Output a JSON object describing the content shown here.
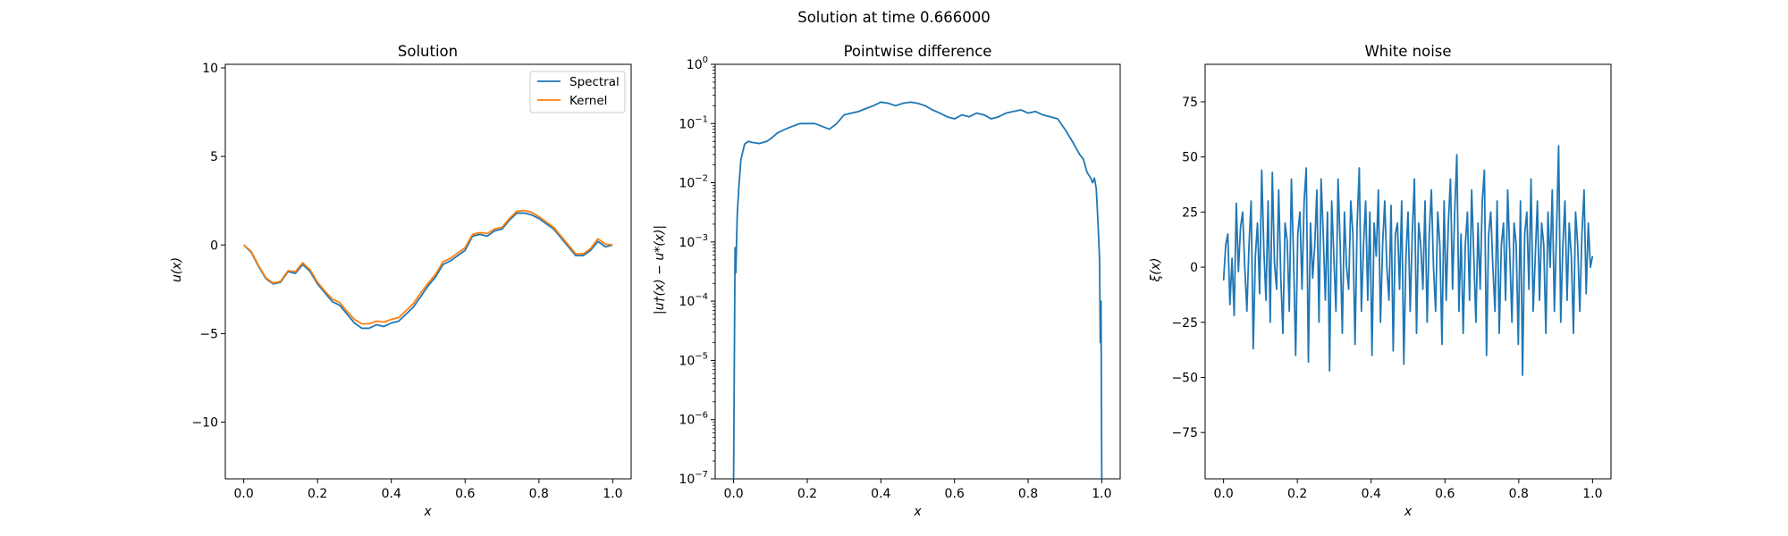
{
  "suptitle": "Solution at time 0.666000",
  "chart_data": [
    {
      "type": "line",
      "title": "Solution",
      "xlabel": "x",
      "ylabel": "u(x)",
      "xlim": [
        -0.05,
        1.05
      ],
      "ylim": [
        -13.2,
        10.2
      ],
      "xticks": [
        0.0,
        0.2,
        0.4,
        0.6,
        0.8,
        1.0
      ],
      "xtick_labels": [
        "0.0",
        "0.2",
        "0.4",
        "0.6",
        "0.8",
        "1.0"
      ],
      "yticks": [
        -10,
        -5,
        0,
        5,
        10
      ],
      "ytick_labels": [
        "−10",
        "−5",
        "0",
        "5",
        "10"
      ],
      "grid": false,
      "legend": "top-right",
      "series": [
        {
          "name": "Spectral",
          "color": "#1f77b4",
          "x": [
            0.0,
            0.02,
            0.04,
            0.06,
            0.08,
            0.1,
            0.12,
            0.14,
            0.16,
            0.18,
            0.2,
            0.22,
            0.24,
            0.26,
            0.28,
            0.3,
            0.32,
            0.34,
            0.36,
            0.38,
            0.4,
            0.42,
            0.44,
            0.46,
            0.48,
            0.5,
            0.52,
            0.54,
            0.56,
            0.58,
            0.6,
            0.62,
            0.64,
            0.66,
            0.68,
            0.7,
            0.72,
            0.74,
            0.76,
            0.78,
            0.8,
            0.82,
            0.84,
            0.86,
            0.88,
            0.9,
            0.92,
            0.94,
            0.96,
            0.98,
            1.0
          ],
          "values": [
            0.0,
            -0.4,
            -1.2,
            -1.9,
            -2.2,
            -2.1,
            -1.5,
            -1.6,
            -1.1,
            -1.5,
            -2.2,
            -2.7,
            -3.2,
            -3.4,
            -3.9,
            -4.4,
            -4.7,
            -4.7,
            -4.5,
            -4.6,
            -4.4,
            -4.3,
            -3.9,
            -3.5,
            -2.9,
            -2.3,
            -1.8,
            -1.1,
            -0.9,
            -0.6,
            -0.3,
            0.5,
            0.6,
            0.5,
            0.8,
            0.9,
            1.4,
            1.8,
            1.8,
            1.7,
            1.5,
            1.2,
            0.9,
            0.4,
            -0.1,
            -0.6,
            -0.6,
            -0.3,
            0.2,
            -0.1,
            0.0
          ]
        },
        {
          "name": "Kernel",
          "color": "#ff7f0e",
          "x": [
            0.0,
            0.02,
            0.04,
            0.06,
            0.08,
            0.1,
            0.12,
            0.14,
            0.16,
            0.18,
            0.2,
            0.22,
            0.24,
            0.26,
            0.28,
            0.3,
            0.32,
            0.34,
            0.36,
            0.38,
            0.4,
            0.42,
            0.44,
            0.46,
            0.48,
            0.5,
            0.52,
            0.54,
            0.56,
            0.58,
            0.6,
            0.62,
            0.64,
            0.66,
            0.68,
            0.7,
            0.72,
            0.74,
            0.76,
            0.78,
            0.8,
            0.82,
            0.84,
            0.86,
            0.88,
            0.9,
            0.92,
            0.94,
            0.96,
            0.98,
            1.0
          ],
          "values": [
            0.0,
            -0.35,
            -1.15,
            -1.85,
            -2.15,
            -2.05,
            -1.45,
            -1.5,
            -1.0,
            -1.4,
            -2.1,
            -2.6,
            -3.05,
            -3.25,
            -3.75,
            -4.2,
            -4.45,
            -4.45,
            -4.3,
            -4.35,
            -4.2,
            -4.1,
            -3.7,
            -3.3,
            -2.7,
            -2.15,
            -1.65,
            -0.95,
            -0.75,
            -0.45,
            -0.15,
            0.6,
            0.7,
            0.65,
            0.9,
            1.0,
            1.5,
            1.9,
            1.95,
            1.85,
            1.6,
            1.3,
            1.0,
            0.5,
            0.0,
            -0.5,
            -0.5,
            -0.2,
            0.35,
            0.05,
            0.0
          ]
        }
      ]
    },
    {
      "type": "line",
      "title": "Pointwise difference",
      "xlabel": "x",
      "ylabel": "|u†(x) − u*(x)|",
      "xlim": [
        -0.05,
        1.05
      ],
      "ylim": [
        1e-07,
        1
      ],
      "yscale": "log",
      "xticks": [
        0.0,
        0.2,
        0.4,
        0.6,
        0.8,
        1.0
      ],
      "xtick_labels": [
        "0.0",
        "0.2",
        "0.4",
        "0.6",
        "0.8",
        "1.0"
      ],
      "yticks": [
        1e-07,
        1e-06,
        1e-05,
        0.0001,
        0.001,
        0.01,
        0.1,
        1
      ],
      "ytick_labels": [
        [
          "10",
          "−7"
        ],
        [
          "10",
          "−6"
        ],
        [
          "10",
          "−5"
        ],
        [
          "10",
          "−4"
        ],
        [
          "10",
          "−3"
        ],
        [
          "10",
          "−2"
        ],
        [
          "10",
          "−1"
        ],
        [
          "10",
          "0"
        ]
      ],
      "grid": false,
      "series": [
        {
          "color": "#1f77b4",
          "x": [
            0.0,
            0.002,
            0.004,
            0.006,
            0.008,
            0.01,
            0.015,
            0.02,
            0.03,
            0.04,
            0.05,
            0.07,
            0.09,
            0.1,
            0.12,
            0.14,
            0.16,
            0.18,
            0.2,
            0.22,
            0.24,
            0.26,
            0.28,
            0.3,
            0.32,
            0.34,
            0.36,
            0.38,
            0.4,
            0.42,
            0.44,
            0.46,
            0.48,
            0.5,
            0.52,
            0.54,
            0.56,
            0.58,
            0.6,
            0.62,
            0.64,
            0.66,
            0.68,
            0.7,
            0.72,
            0.74,
            0.76,
            0.78,
            0.8,
            0.82,
            0.84,
            0.86,
            0.88,
            0.9,
            0.92,
            0.94,
            0.95,
            0.96,
            0.97,
            0.975,
            0.98,
            0.985,
            0.99,
            0.992,
            0.994,
            0.996,
            0.998,
            1.0
          ],
          "values": [
            1e-07,
            1e-05,
            0.0008,
            0.0003,
            0.001,
            0.003,
            0.01,
            0.025,
            0.045,
            0.05,
            0.048,
            0.046,
            0.05,
            0.055,
            0.07,
            0.08,
            0.09,
            0.1,
            0.1,
            0.1,
            0.09,
            0.08,
            0.1,
            0.14,
            0.15,
            0.16,
            0.18,
            0.2,
            0.23,
            0.22,
            0.2,
            0.22,
            0.23,
            0.22,
            0.2,
            0.17,
            0.15,
            0.13,
            0.12,
            0.14,
            0.13,
            0.15,
            0.14,
            0.12,
            0.13,
            0.15,
            0.16,
            0.17,
            0.15,
            0.16,
            0.14,
            0.13,
            0.12,
            0.08,
            0.05,
            0.03,
            0.025,
            0.015,
            0.012,
            0.01,
            0.012,
            0.008,
            0.002,
            0.001,
            0.0005,
            2e-05,
            0.0001,
            1e-07
          ]
        }
      ]
    },
    {
      "type": "line",
      "title": "White noise",
      "xlabel": "x",
      "ylabel": "ξ(x)",
      "xlim": [
        -0.05,
        1.05
      ],
      "ylim": [
        -96,
        92
      ],
      "xticks": [
        0.0,
        0.2,
        0.4,
        0.6,
        0.8,
        1.0
      ],
      "xtick_labels": [
        "0.0",
        "0.2",
        "0.4",
        "0.6",
        "0.8",
        "1.0"
      ],
      "yticks": [
        -75,
        -50,
        -25,
        0,
        25,
        50,
        75
      ],
      "ytick_labels": [
        "−75",
        "−50",
        "−25",
        "0",
        "25",
        "50",
        "75"
      ],
      "grid": false,
      "series": [
        {
          "color": "#1f77b4",
          "x_start": 0.0,
          "x_end": 1.0,
          "values": [
            -6,
            10,
            15,
            -17,
            4,
            -22,
            29,
            -2,
            18,
            25,
            0,
            -20,
            10,
            30,
            -37,
            5,
            20,
            -12,
            44,
            8,
            -15,
            30,
            -25,
            43,
            2,
            -10,
            35,
            -5,
            -30,
            20,
            12,
            -20,
            40,
            5,
            -40,
            15,
            25,
            -10,
            30,
            45,
            -43,
            20,
            -5,
            10,
            35,
            -25,
            40,
            15,
            -15,
            25,
            -47,
            30,
            5,
            -20,
            40,
            10,
            -30,
            25,
            0,
            -10,
            30,
            15,
            -35,
            20,
            45,
            -20,
            10,
            30,
            -15,
            25,
            -40,
            20,
            5,
            35,
            -25,
            10,
            30,
            0,
            -15,
            28,
            -38,
            15,
            20,
            -10,
            30,
            -44,
            5,
            25,
            -20,
            15,
            40,
            -30,
            20,
            10,
            -10,
            30,
            -25,
            15,
            35,
            0,
            -20,
            25,
            10,
            -35,
            30,
            -15,
            20,
            40,
            -10,
            25,
            51,
            -20,
            15,
            -30,
            10,
            25,
            -15,
            35,
            5,
            -25,
            20,
            -10,
            30,
            44,
            -40,
            15,
            25,
            0,
            -20,
            30,
            -30,
            10,
            20,
            -15,
            35,
            5,
            -25,
            20,
            10,
            -35,
            30,
            -49,
            15,
            25,
            -10,
            40,
            -20,
            5,
            30,
            -15,
            20,
            10,
            -30,
            25,
            0,
            35,
            -20,
            15,
            55,
            -25,
            10,
            30,
            -15,
            20,
            5,
            -30,
            25,
            10,
            -20,
            15,
            35,
            -12,
            20,
            0,
            5
          ]
        }
      ]
    }
  ]
}
